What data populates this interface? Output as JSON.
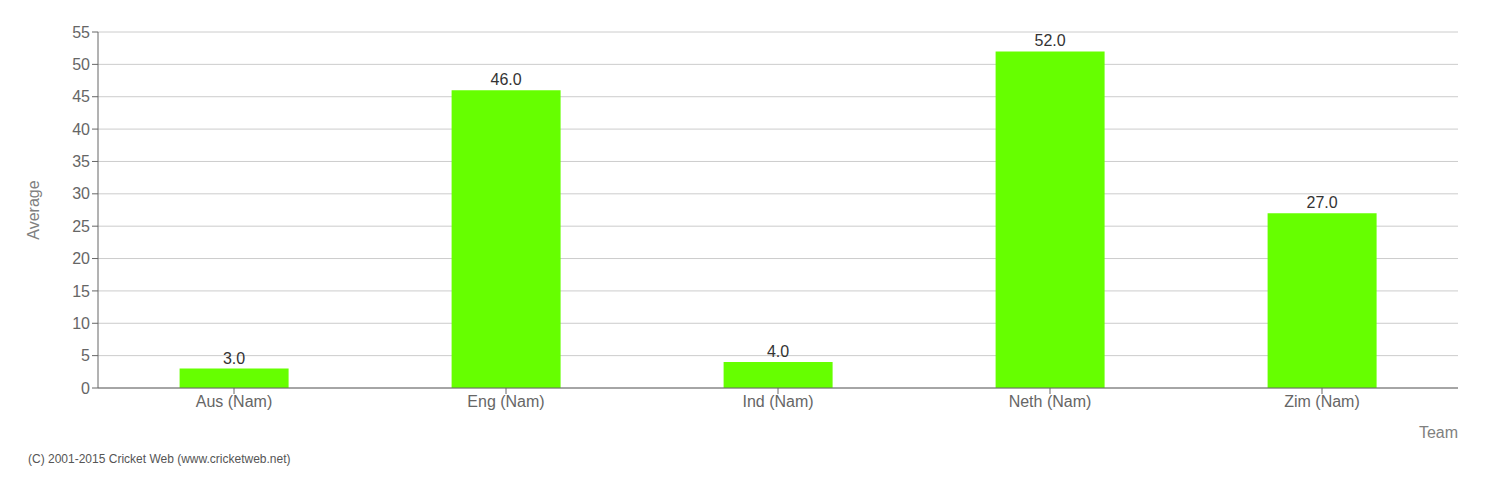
{
  "chart_data": {
    "type": "bar",
    "xlabel": "Team",
    "ylabel": "Average",
    "footnote": "(C) 2001-2015 Cricket Web (www.cricketweb.net)",
    "categories": [
      "Aus (Nam)",
      "Eng (Nam)",
      "Ind (Nam)",
      "Neth (Nam)",
      "Zim (Nam)"
    ],
    "values": [
      3.0,
      46.0,
      4.0,
      52.0,
      27.0
    ],
    "value_labels": [
      "3.0",
      "46.0",
      "4.0",
      "52.0",
      "27.0"
    ],
    "color": "#66ff00",
    "ylim": [
      0,
      55
    ],
    "yticks": [
      0,
      5,
      10,
      15,
      20,
      25,
      30,
      35,
      40,
      45,
      50,
      55
    ],
    "grid": true,
    "data_labels": true
  }
}
